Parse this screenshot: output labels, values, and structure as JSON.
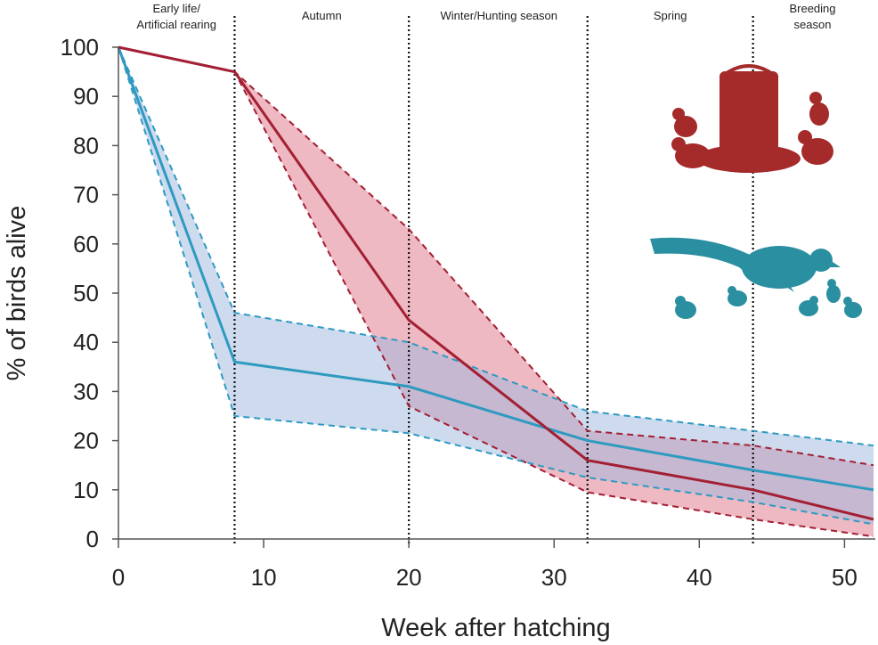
{
  "chart_data": {
    "type": "line",
    "title": "",
    "xlabel": "Week after hatching",
    "ylabel": "% of birds alive",
    "xlim": [
      0,
      52
    ],
    "ylim": [
      0,
      100
    ],
    "xticks": [
      0,
      10,
      20,
      30,
      40,
      50
    ],
    "yticks": [
      0,
      10,
      20,
      30,
      40,
      50,
      60,
      70,
      80,
      90,
      100
    ],
    "grid": false,
    "season_boundaries": [
      8,
      20,
      32.3,
      43.7
    ],
    "seasons": [
      {
        "label": [
          "Early life/",
          "Artificial rearing"
        ],
        "center": 4
      },
      {
        "label": [
          "Autumn"
        ],
        "center": 14
      },
      {
        "label": [
          "Winter/Hunting  season"
        ],
        "center": 26.2
      },
      {
        "label": [
          "Spring"
        ],
        "center": 38
      },
      {
        "label": [
          "Breeding",
          "season"
        ],
        "center": 47.8
      }
    ],
    "series": [
      {
        "name": "Released (reared) birds",
        "color": "#a31f34",
        "fill": "#e07f8f",
        "x": [
          0,
          8,
          20,
          32.3,
          43.7,
          52
        ],
        "mean": [
          100,
          95,
          44.5,
          16,
          10,
          4
        ],
        "upper": [
          100,
          95,
          63,
          22,
          19,
          15
        ],
        "lower": [
          100,
          95,
          27,
          9.5,
          4,
          0.5
        ]
      },
      {
        "name": "Wild birds",
        "color": "#2e9ac0",
        "fill": "#9db8e0",
        "x": [
          0,
          8,
          20,
          32.3,
          43.7,
          52
        ],
        "mean": [
          100,
          36,
          31,
          20,
          14,
          10
        ],
        "upper": [
          100,
          46,
          40,
          26,
          22,
          19
        ],
        "lower": [
          100,
          25,
          21.5,
          12.5,
          7.5,
          3
        ]
      }
    ]
  }
}
